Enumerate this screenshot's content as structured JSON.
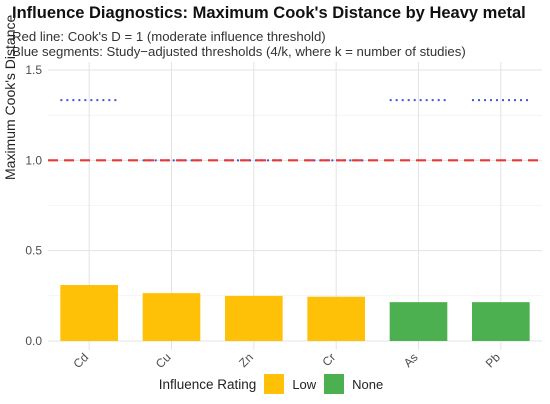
{
  "chart_data": {
    "type": "bar",
    "title": "Influence Diagnostics: Maximum Cook's Distance by Heavy metal",
    "subtitle_lines": [
      "Red line: Cook's D = 1 (moderate influence threshold)",
      "Blue segments: Study−adjusted thresholds (4/k, where k = number of studies)"
    ],
    "xlabel": "",
    "ylabel": "Maximum Cook's Distance",
    "categories": [
      "Cd",
      "Cu",
      "Zn",
      "Cr",
      "As",
      "Pb"
    ],
    "values": [
      0.31,
      0.265,
      0.25,
      0.245,
      0.215,
      0.215
    ],
    "rating": [
      "Low",
      "Low",
      "Low",
      "Low",
      "None",
      "None"
    ],
    "study_thresholds": [
      1.333,
      1.0,
      1.0,
      1.0,
      1.333,
      1.333
    ],
    "reference_line": 1.0,
    "ylim": [
      0,
      1.5
    ],
    "yticks": [
      0.0,
      0.5,
      1.0,
      1.5
    ],
    "ytick_labels": [
      "0.0",
      "0.5",
      "1.0",
      "1.5"
    ],
    "grid": true,
    "legend": {
      "title": "Influence Rating",
      "placement": "bottom",
      "entries": [
        {
          "label": "Low",
          "color": "#FFC107"
        },
        {
          "label": "None",
          "color": "#4CAF50"
        }
      ]
    },
    "colors": {
      "Low": "#FFC107",
      "None": "#4CAF50",
      "reference": "#E53935",
      "threshold": "#3F51E5"
    }
  }
}
